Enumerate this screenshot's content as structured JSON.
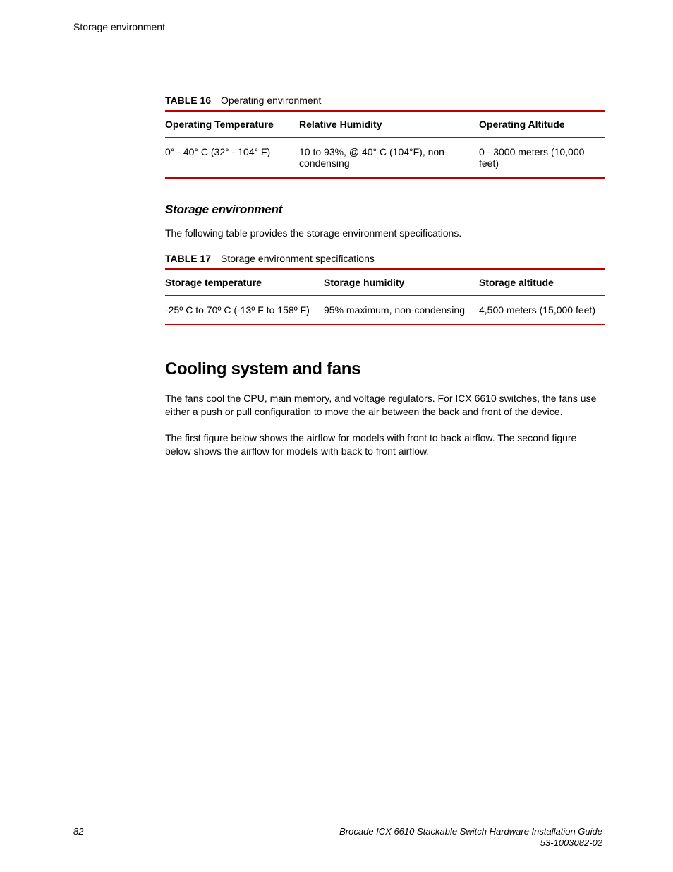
{
  "runningHead": "Storage environment",
  "table16": {
    "captionLabel": "TABLE 16",
    "captionTitle": "Operating environment",
    "columns": [
      "Operating Temperature",
      "Relative Humidity",
      "Operating Altitude"
    ],
    "rows": [
      [
        "0° - 40° C (32° - 104° F)",
        "10 to 93%, @ 40° C (104°F), non-condensing",
        "0 - 3000 meters (10,000 feet)"
      ]
    ],
    "colWidthsPx": [
      190,
      255,
      178
    ],
    "ruleColor": "#c00000"
  },
  "storageEnvSection": {
    "heading": "Storage environment",
    "intro": "The following table provides the storage environment specifications."
  },
  "table17": {
    "captionLabel": "TABLE 17",
    "captionTitle": "Storage environment specifications",
    "columns": [
      "Storage temperature",
      "Storage humidity",
      "Storage altitude"
    ],
    "rows": [
      [
        "-25º C to 70º C (-13º F to 158º F)",
        "95% maximum, non-condensing",
        "4,500 meters (15,000 feet)"
      ]
    ],
    "colWidthsPx": [
      225,
      220,
      178
    ],
    "ruleColor": "#c00000"
  },
  "coolingSection": {
    "heading": "Cooling system and fans",
    "para1": "The fans cool the CPU, main memory, and voltage regulators. For ICX 6610 switches, the fans use either a push or pull configuration to move the air between the back and front of the device.",
    "para2": "The first figure below shows the airflow for models with front to back airflow. The second figure below shows the airflow for models with back to front airflow."
  },
  "footer": {
    "pageNumber": "82",
    "guideTitle": "Brocade ICX 6610 Stackable Switch Hardware Installation Guide",
    "docNumber": "53-1003082-02"
  }
}
